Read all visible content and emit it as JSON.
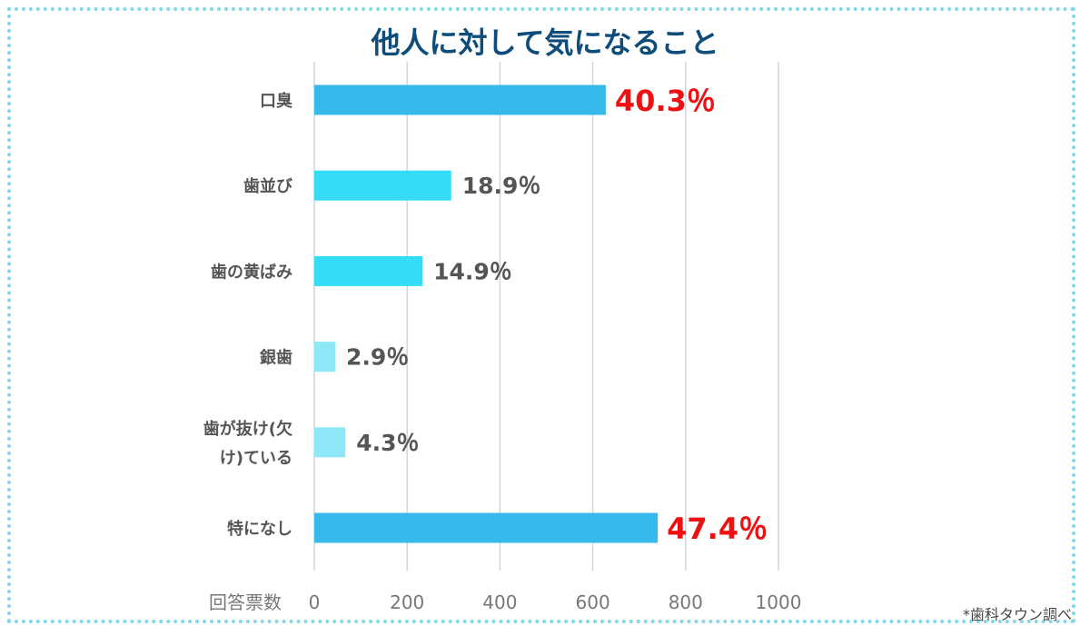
{
  "chart_data": {
    "type": "bar",
    "orientation": "horizontal",
    "title": "他人に対して気になること",
    "xlabel": "回答票数",
    "ylabel": "",
    "xlim": [
      0,
      1000
    ],
    "xticks": [
      0,
      200,
      400,
      600,
      800,
      1000
    ],
    "grid": true,
    "legend": "none",
    "categories": [
      [
        "口臭"
      ],
      [
        "歯並び"
      ],
      [
        "歯の黄ばみ"
      ],
      [
        "銀歯"
      ],
      [
        "歯が抜け(欠",
        "け)ている"
      ],
      [
        "特になし"
      ]
    ],
    "values": [
      628,
      295,
      233,
      45,
      67,
      740
    ],
    "data_labels": [
      "40.3％",
      "18.9％",
      "14.9％",
      "2.9％",
      "4.3％",
      "47.4％"
    ],
    "highlighted": [
      true,
      false,
      false,
      false,
      false,
      true
    ],
    "bar_colors": [
      "#37b9ec",
      "#35dcf6",
      "#35dcf6",
      "#8fe8f8",
      "#8fe8f8",
      "#37b9ec"
    ],
    "highlight_color": "#ee1111"
  },
  "source_note": "*歯科タウン調べ"
}
